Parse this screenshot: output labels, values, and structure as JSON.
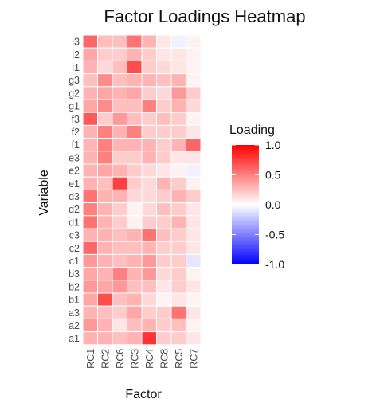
{
  "chart_data": {
    "type": "heatmap",
    "title": "Factor Loadings Heatmap",
    "xlabel": "Factor",
    "ylabel": "Variable",
    "x_categories": [
      "RC1",
      "RC2",
      "RC6",
      "RC3",
      "RC4",
      "RC8",
      "RC5",
      "RC7"
    ],
    "y_categories": [
      "i3",
      "i2",
      "i1",
      "g3",
      "g2",
      "g1",
      "f3",
      "f2",
      "f1",
      "e3",
      "e2",
      "e1",
      "d3",
      "d2",
      "d1",
      "c3",
      "c2",
      "c1",
      "b3",
      "b2",
      "b1",
      "a3",
      "a2",
      "a1"
    ],
    "values": [
      [
        0.6,
        0.25,
        0.25,
        0.55,
        0.3,
        0.1,
        -0.05,
        0.05
      ],
      [
        0.35,
        0.2,
        0.2,
        0.3,
        0.2,
        0.1,
        0.1,
        0.05
      ],
      [
        0.3,
        0.15,
        0.25,
        0.7,
        0.2,
        0.15,
        0.1,
        0.05
      ],
      [
        0.25,
        0.45,
        0.25,
        0.3,
        0.3,
        0.25,
        0.3,
        0.05
      ],
      [
        0.3,
        0.35,
        0.3,
        0.35,
        0.2,
        0.15,
        0.4,
        0.2
      ],
      [
        0.35,
        0.45,
        0.25,
        0.25,
        0.5,
        0.2,
        0.3,
        0.15
      ],
      [
        0.65,
        0.2,
        0.4,
        0.25,
        0.2,
        0.25,
        0.2,
        0.05
      ],
      [
        0.3,
        0.5,
        0.3,
        0.5,
        0.2,
        0.2,
        0.2,
        0.1
      ],
      [
        0.3,
        0.5,
        0.3,
        0.3,
        0.3,
        0.2,
        0.3,
        0.6
      ],
      [
        0.3,
        0.5,
        0.2,
        0.2,
        0.3,
        0.2,
        0.1,
        0.1
      ],
      [
        0.3,
        0.35,
        0.3,
        0.2,
        0.15,
        0.1,
        0.05,
        -0.05
      ],
      [
        0.3,
        0.25,
        0.75,
        0.2,
        0.15,
        0.3,
        0.2,
        0.05
      ],
      [
        0.55,
        0.3,
        0.3,
        0.15,
        0.15,
        0.2,
        0.3,
        0.2
      ],
      [
        0.5,
        0.3,
        0.2,
        0.05,
        0.15,
        0.25,
        0.2,
        0.1
      ],
      [
        0.55,
        0.3,
        0.2,
        0.05,
        0.2,
        0.2,
        0.3,
        0.1
      ],
      [
        0.3,
        0.3,
        0.25,
        0.3,
        0.55,
        0.25,
        0.2,
        0.1
      ],
      [
        0.6,
        0.3,
        0.25,
        0.25,
        0.3,
        0.2,
        0.2,
        0.1
      ],
      [
        0.4,
        0.3,
        0.25,
        0.3,
        0.4,
        0.2,
        0.2,
        -0.1
      ],
      [
        0.35,
        0.3,
        0.5,
        0.3,
        0.4,
        0.15,
        0.2,
        0.05
      ],
      [
        0.4,
        0.35,
        0.4,
        0.25,
        0.25,
        0.1,
        0.2,
        0.1
      ],
      [
        0.35,
        0.7,
        0.25,
        0.3,
        0.15,
        0.05,
        0.1,
        0.05
      ],
      [
        0.3,
        0.25,
        0.2,
        0.35,
        0.2,
        0.2,
        0.55,
        0.1
      ],
      [
        0.4,
        0.3,
        0.1,
        0.25,
        0.3,
        0.2,
        0.25,
        0.05
      ],
      [
        0.3,
        0.3,
        0.25,
        0.3,
        0.8,
        0.2,
        0.2,
        0.1
      ]
    ],
    "legend": {
      "title": "Loading",
      "min": -1.0,
      "max": 1.0,
      "breaks": [
        1.0,
        0.5,
        0.0,
        -0.5,
        -1.0
      ],
      "break_labels": [
        "1.0",
        "0.5",
        "0.0",
        "-0.5",
        "-1.0"
      ],
      "low_color": "#0000ff",
      "mid_color": "#ffffff",
      "high_color": "#ff0000"
    },
    "grid_color": "#ffffff"
  }
}
